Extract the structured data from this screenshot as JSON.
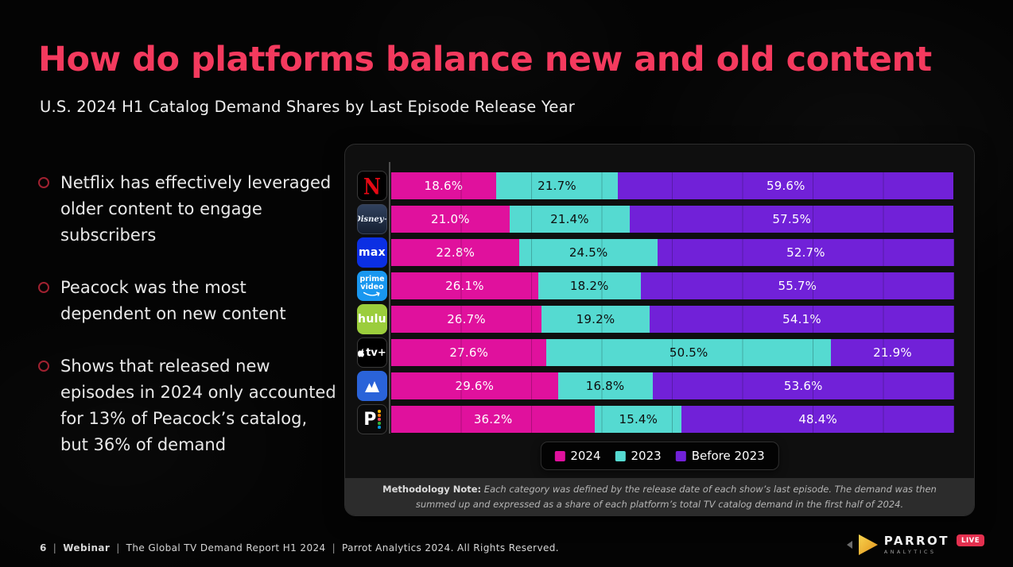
{
  "slide": {
    "title": "How do platforms balance new and old content",
    "subtitle": "U.S. 2024 H1 Catalog Demand Shares by Last Episode Release Year",
    "bullets": [
      "Netflix has effectively leveraged older content to engage subscribers",
      "Peacock was the most dependent on new content",
      "Shows that released new episodes in 2024 only accounted for 13% of Peacock’s catalog, but 36% of demand"
    ],
    "footer": {
      "page_number": "6",
      "separator": "|",
      "webinar_label": "Webinar",
      "report_title": "The Global TV Demand Report H1 2024",
      "rights": "Parrot Analytics 2024. All Rights Reserved."
    },
    "logo": {
      "brand": "PARROT",
      "sub_brand": "ANALYTICS",
      "live_badge": "LIVE"
    },
    "colors": {
      "title_accent": "#f43a5e",
      "pink": "#e0119d",
      "teal": "#55dad1",
      "purple": "#7121d8"
    }
  },
  "chart_data": {
    "type": "bar",
    "orientation": "horizontal-stacked",
    "title": "U.S. 2024 H1 Catalog Demand Shares by Last Episode Release Year",
    "categories": [
      "Netflix",
      "Disney+",
      "Max",
      "Prime Video",
      "Hulu",
      "Apple TV+",
      "Paramount+",
      "Peacock"
    ],
    "series": [
      {
        "name": "2024",
        "color": "#e0119d",
        "label_color": "#ffffff",
        "values": [
          18.6,
          21.0,
          22.8,
          26.1,
          26.7,
          27.6,
          29.6,
          36.2
        ]
      },
      {
        "name": "2023",
        "color": "#55dad1",
        "label_color": "#0d0d0d",
        "values": [
          21.7,
          21.4,
          24.5,
          18.2,
          19.2,
          50.5,
          16.8,
          15.4
        ]
      },
      {
        "name": "Before 2023",
        "color": "#7121d8",
        "label_color": "#ffffff",
        "values": [
          59.6,
          57.5,
          52.7,
          55.7,
          54.1,
          21.9,
          53.6,
          48.4
        ]
      }
    ],
    "value_suffix": "%",
    "value_decimals": 1,
    "xlim": [
      0,
      100
    ],
    "grid": "faint vertical every 12.5%",
    "legend_position": "bottom-center",
    "platform_tiles": [
      {
        "key": "netflix",
        "text": "N"
      },
      {
        "key": "disney-plus",
        "text": "Disney+"
      },
      {
        "key": "max",
        "text": "max"
      },
      {
        "key": "prime-video",
        "text": "prime video"
      },
      {
        "key": "hulu",
        "text": "hulu"
      },
      {
        "key": "apple-tv-plus",
        "text": "tv+"
      },
      {
        "key": "paramount-plus",
        "text": ""
      },
      {
        "key": "peacock",
        "text": "P"
      }
    ]
  },
  "methodology": {
    "label": "Methodology Note:",
    "text": "Each category was defined by the release date of each show’s last episode. The demand was then summed up and expressed as a share of each platform’s total TV catalog demand in the first half of 2024."
  }
}
